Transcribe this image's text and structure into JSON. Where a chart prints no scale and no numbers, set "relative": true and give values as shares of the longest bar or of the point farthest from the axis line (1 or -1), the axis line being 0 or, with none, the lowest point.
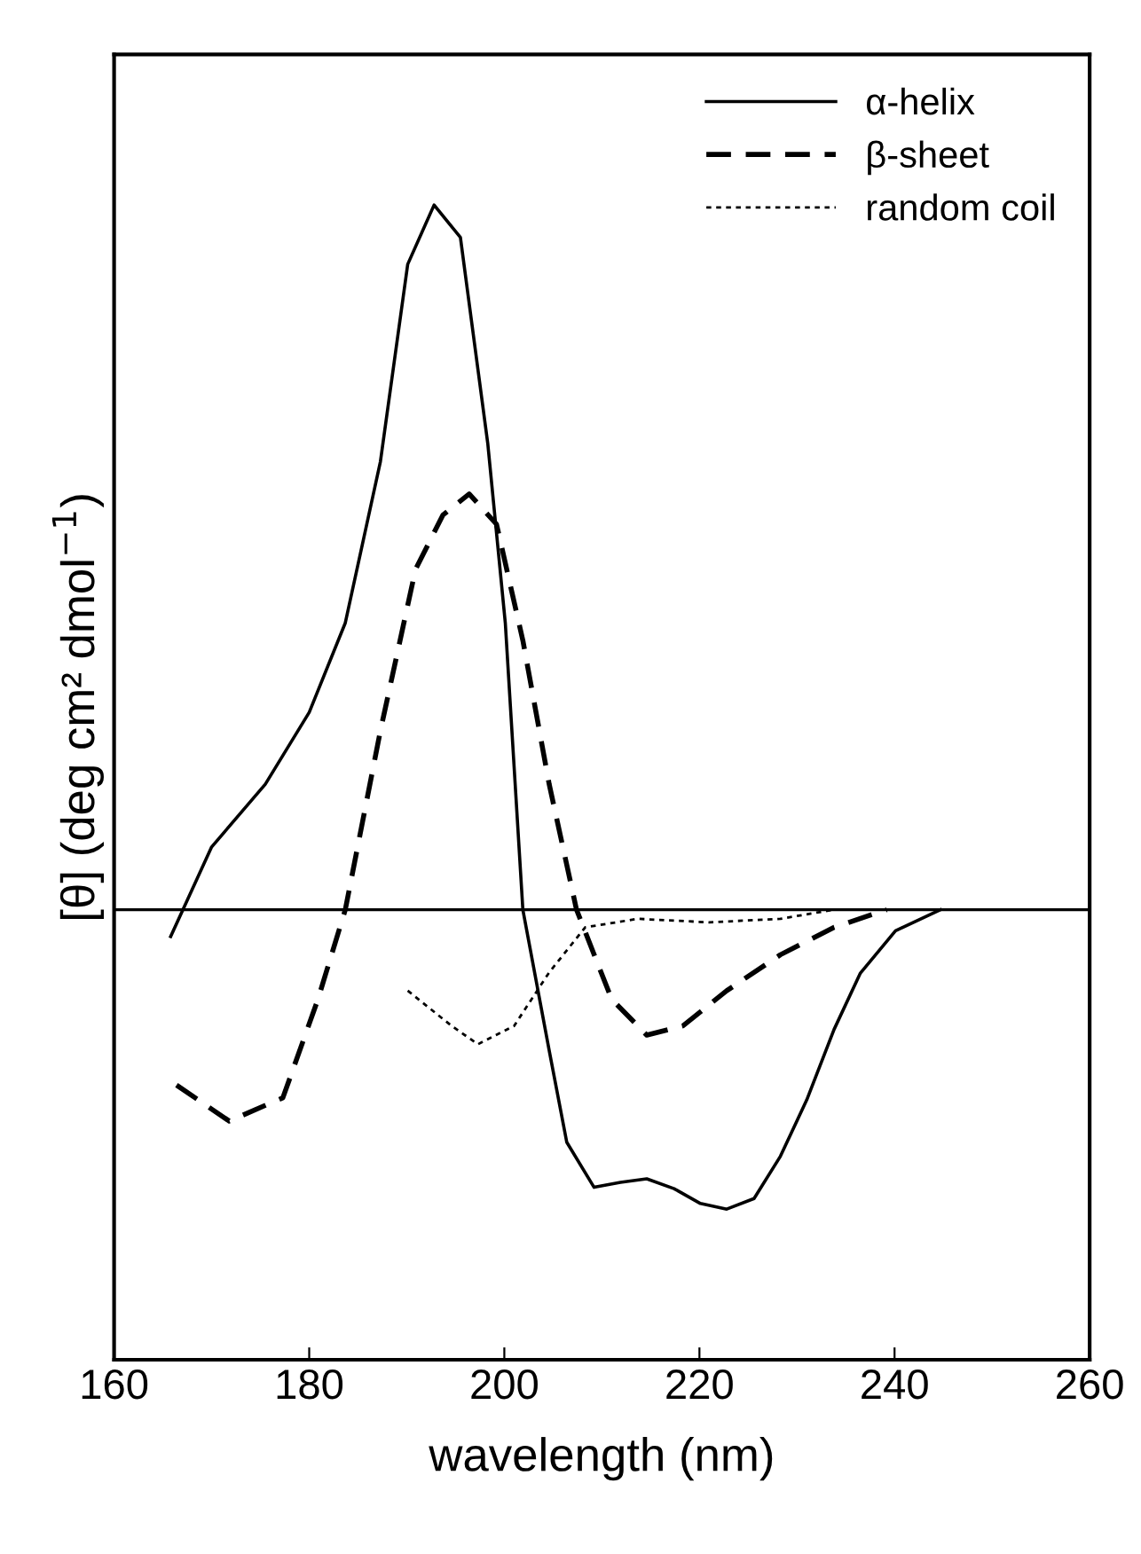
{
  "chart_data": {
    "type": "line",
    "relative": true,
    "xlabel": "wavelength (nm)",
    "ylabel": "[θ] (deg cm² dmol$^{−1}$)",
    "xlim": [
      160,
      260
    ],
    "xticks": [
      160,
      180,
      200,
      220,
      240,
      260
    ],
    "legend": "top right",
    "grid": false,
    "ref_lines": [
      {
        "axis": "y",
        "value": 0,
        "color": "#000000",
        "line_style": "solid"
      }
    ],
    "series": [
      {
        "name": "α-helix",
        "color": "#000000",
        "line_style": "solid",
        "x": [
          165.8,
          170.0,
          175.5,
          180.0,
          183.7,
          187.3,
          190.1,
          192.8,
          195.5,
          198.3,
          200.1,
          201.9,
          204.6,
          206.4,
          209.2,
          211.9,
          214.6,
          217.4,
          220.1,
          222.8,
          225.6,
          228.3,
          231.0,
          233.8,
          236.5,
          240.1,
          244.7
        ],
        "values": [
          -0.038,
          0.089,
          0.178,
          0.28,
          0.407,
          0.636,
          0.916,
          1.0,
          0.954,
          0.662,
          0.407,
          0,
          -0.2,
          -0.33,
          -0.394,
          -0.387,
          -0.382,
          -0.396,
          -0.417,
          -0.425,
          -0.41,
          -0.35,
          -0.27,
          -0.17,
          -0.09,
          -0.03,
          0
        ]
      },
      {
        "name": "β-sheet",
        "color": "#000000",
        "line_style": "dashed",
        "x": [
          166.4,
          171.8,
          177.3,
          180.9,
          183.7,
          187.3,
          190.9,
          193.7,
          196.4,
          199.2,
          201.9,
          204.6,
          207.4,
          211.0,
          214.6,
          218.3,
          222.8,
          228.3,
          233.8,
          239.2
        ],
        "values": [
          -0.249,
          -0.3,
          -0.267,
          -0.127,
          0,
          0.254,
          0.483,
          0.56,
          0.59,
          0.547,
          0.382,
          0.178,
          0,
          -0.127,
          -0.178,
          -0.165,
          -0.115,
          -0.064,
          -0.025,
          0
        ]
      },
      {
        "name": "random coil",
        "color": "#000000",
        "line_style": "dotted",
        "x": [
          190.1,
          194.6,
          197.3,
          201.0,
          204.6,
          208.3,
          213.7,
          221.0,
          228.3,
          233.8
        ],
        "values": [
          -0.115,
          -0.165,
          -0.191,
          -0.165,
          -0.089,
          -0.025,
          -0.013,
          -0.018,
          -0.013,
          0
        ]
      }
    ]
  }
}
